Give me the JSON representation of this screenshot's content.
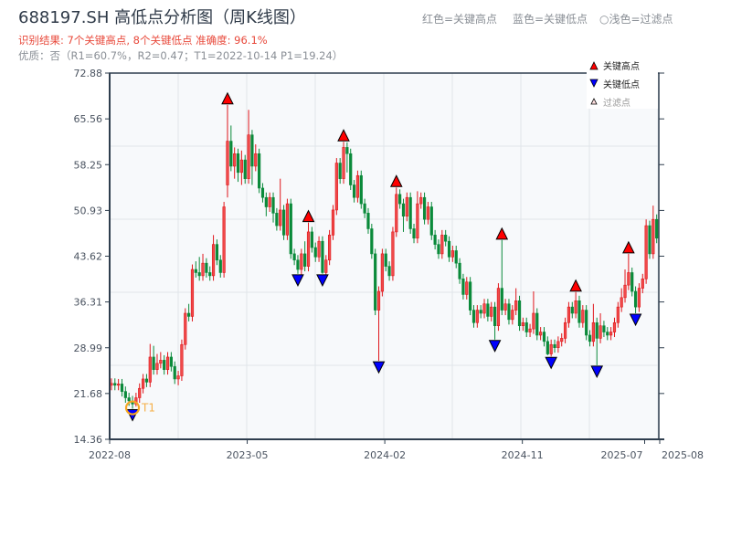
{
  "header": {
    "title": "688197.SH 高低点分析图（周K线图）",
    "result_line": "识别结果: 7个关键高点, 8个关键低点   准确度: 96.1%",
    "quality_line": "优质：否（R1=60.7%，R2=0.47；T1=2022-10-14 P1=19.24）",
    "top_legend": {
      "red": "红色=关键高点",
      "blue": "蓝色=关键低点",
      "filtered": "○浅色=过滤点"
    }
  },
  "chart_data": {
    "type": "candlestick",
    "title": "688197.SH 高低点分析图（周K线图）",
    "frequency": "weekly",
    "ylim": [
      14.36,
      72.88
    ],
    "y_ticks": [
      14.36,
      21.68,
      28.99,
      36.31,
      43.62,
      50.93,
      58.25,
      65.56,
      72.88
    ],
    "y_tick_labels": [
      "14.36",
      "21.68",
      "28.99",
      "36.31",
      "43.62",
      "50.93",
      "58.25",
      "65.56",
      "72.88"
    ],
    "x_tick_labels": [
      "2022-08",
      "2023-05",
      "2024-02",
      "2024-11",
      "2025-07",
      "2025-08"
    ],
    "grid": true,
    "colors": {
      "up": "#e0161b",
      "down": "#0a8a3a",
      "high_marker": "#ff0000",
      "low_marker": "#0000ff",
      "t1": "#f5a623",
      "plot_bg": "#f7f9fb",
      "axis": "#2f3e4e"
    },
    "open": [
      23.0,
      23.3,
      23.0,
      23.2,
      22.0,
      21.0,
      20.5,
      20.0,
      21.0,
      22.5,
      24.0,
      23.5,
      27.5,
      25.5,
      26.5,
      27.0,
      25.5,
      27.5,
      26.0,
      24.0,
      24.5,
      29.5,
      34.5,
      34.0,
      41.5,
      41.0,
      40.5,
      42.5,
      41.0,
      40.5,
      45.5,
      43.0,
      41.0,
      55.0,
      62.0,
      58.0,
      60.0,
      57.0,
      59.0,
      56.0,
      63.0,
      58.0,
      60.0,
      54.5,
      53.0,
      51.5,
      53.0,
      50.5,
      48.5,
      51.0,
      47.0,
      52.0,
      44.0,
      43.0,
      41.5,
      44.0,
      42.0,
      47.5,
      45.0,
      43.5,
      46.0,
      41.0,
      43.0,
      47.0,
      51.0,
      58.5,
      56.0,
      61.0,
      60.0,
      55.0,
      53.0,
      56.5,
      52.0,
      50.5,
      48.0,
      44.0,
      35.0,
      38.0,
      44.0,
      42.0,
      40.5,
      47.5,
      53.5,
      52.0,
      50.0,
      53.0,
      48.0,
      46.5,
      52.0,
      53.0,
      49.5,
      51.5,
      47.0,
      45.5,
      44.0,
      47.0,
      46.0,
      43.5,
      44.5,
      42.5,
      40.0,
      37.5,
      39.5,
      35.0,
      33.0,
      35.0,
      34.5,
      36.0,
      34.0,
      35.5,
      32.5,
      38.5,
      35.0,
      36.0,
      33.5,
      35.0,
      36.5,
      32.5,
      33.0,
      31.5,
      32.0,
      34.5,
      31.0,
      31.5,
      30.0,
      28.0,
      29.5,
      29.0,
      30.0,
      30.5,
      33.0,
      35.5,
      34.5,
      36.5,
      33.0,
      35.0,
      31.0,
      30.0,
      33.0,
      30.5,
      32.5,
      31.5,
      31.0,
      31.5,
      33.0,
      35.5,
      37.0,
      39.0,
      41.0,
      38.0,
      35.5,
      38.5,
      40.0,
      48.5,
      44.0,
      49.5
    ],
    "high": [
      24.1,
      24.1,
      24.0,
      24.0,
      22.8,
      21.8,
      21.3,
      21.8,
      23.3,
      24.8,
      24.8,
      29.6,
      29.3,
      28.0,
      28.3,
      27.8,
      28.3,
      28.3,
      26.8,
      25.3,
      30.3,
      35.3,
      36.0,
      42.3,
      42.8,
      43.5,
      44.0,
      43.3,
      42.0,
      47.0,
      46.3,
      43.8,
      52.3,
      67.8,
      64.5,
      61.0,
      60.8,
      60.5,
      59.8,
      67.0,
      63.8,
      61.5,
      60.8,
      55.3,
      53.8,
      53.8,
      53.8,
      51.3,
      56.0,
      51.8,
      52.8,
      52.8,
      44.8,
      43.8,
      44.8,
      46.0,
      49.0,
      48.3,
      45.8,
      46.8,
      46.8,
      43.8,
      47.8,
      51.8,
      59.3,
      59.3,
      61.9,
      61.8,
      60.8,
      55.8,
      57.3,
      57.3,
      52.8,
      51.3,
      48.8,
      44.8,
      38.8,
      44.8,
      44.8,
      42.8,
      48.3,
      54.6,
      54.3,
      52.8,
      53.8,
      53.8,
      48.8,
      54.0,
      53.8,
      53.8,
      52.3,
      52.3,
      47.8,
      46.3,
      47.8,
      47.8,
      46.8,
      45.3,
      45.3,
      43.3,
      40.8,
      40.3,
      40.3,
      35.8,
      35.8,
      35.8,
      36.8,
      36.8,
      36.3,
      36.3,
      39.3,
      46.2,
      36.8,
      36.8,
      35.8,
      38.5,
      37.3,
      33.8,
      33.8,
      32.8,
      38.0,
      35.3,
      32.3,
      32.3,
      30.8,
      30.3,
      30.3,
      30.8,
      31.3,
      33.8,
      36.3,
      36.3,
      37.9,
      37.3,
      35.8,
      35.8,
      31.8,
      36.0,
      33.8,
      34.5,
      33.3,
      32.3,
      32.3,
      33.8,
      36.3,
      38.5,
      41.5,
      44.0,
      41.8,
      38.8,
      39.3,
      40.8,
      49.5,
      49.3,
      51.7,
      50.3
    ],
    "low": [
      22.2,
      22.2,
      22.2,
      21.2,
      20.2,
      19.7,
      19.24,
      19.6,
      20.2,
      21.7,
      22.7,
      22.7,
      24.7,
      24.7,
      25.7,
      24.7,
      24.7,
      25.2,
      23.2,
      23.0,
      23.7,
      28.7,
      33.2,
      33.2,
      40.2,
      39.7,
      39.7,
      40.2,
      39.7,
      39.7,
      42.2,
      40.2,
      40.2,
      53.0,
      57.2,
      56.0,
      55.5,
      55.0,
      55.2,
      55.2,
      55.0,
      57.2,
      53.7,
      52.2,
      50.0,
      50.7,
      49.0,
      47.7,
      47.7,
      46.2,
      46.2,
      43.2,
      42.2,
      40.8,
      40.7,
      41.2,
      41.2,
      44.2,
      42.7,
      42.7,
      40.8,
      40.2,
      42.2,
      46.2,
      50.2,
      55.2,
      55.2,
      57.0,
      54.2,
      52.2,
      52.2,
      51.2,
      49.7,
      47.2,
      43.2,
      34.2,
      26.9,
      37.2,
      41.2,
      39.7,
      39.7,
      46.7,
      51.2,
      47.5,
      49.2,
      47.2,
      45.7,
      45.7,
      51.2,
      48.7,
      48.7,
      46.2,
      44.7,
      43.2,
      43.2,
      45.2,
      42.7,
      42.7,
      41.7,
      39.2,
      36.7,
      36.7,
      34.2,
      32.2,
      32.2,
      33.7,
      33.7,
      33.2,
      33.2,
      30.3,
      31.7,
      34.2,
      34.2,
      32.7,
      32.7,
      34.2,
      31.7,
      31.7,
      30.7,
      30.7,
      31.2,
      30.2,
      30.2,
      29.2,
      27.8,
      27.6,
      28.2,
      28.2,
      29.2,
      29.7,
      32.2,
      33.7,
      33.7,
      32.2,
      32.2,
      30.2,
      29.2,
      29.2,
      26.2,
      29.7,
      30.7,
      30.2,
      30.2,
      30.7,
      32.2,
      34.7,
      36.2,
      38.2,
      37.2,
      34.5,
      34.7,
      37.7,
      39.2,
      43.2,
      43.2,
      45.7
    ],
    "close": [
      23.3,
      23.0,
      23.2,
      22.0,
      21.0,
      20.5,
      20.0,
      21.0,
      22.5,
      24.0,
      23.5,
      27.5,
      25.5,
      26.5,
      27.0,
      25.5,
      27.5,
      26.0,
      24.0,
      24.5,
      29.5,
      34.5,
      34.0,
      41.5,
      41.0,
      40.5,
      42.5,
      41.0,
      40.5,
      45.5,
      43.0,
      41.0,
      51.5,
      62.0,
      58.0,
      60.0,
      57.0,
      59.0,
      56.0,
      63.0,
      58.0,
      60.0,
      54.5,
      53.0,
      51.5,
      53.0,
      50.5,
      48.5,
      51.0,
      47.0,
      52.0,
      44.0,
      43.0,
      41.5,
      44.0,
      42.0,
      47.5,
      45.0,
      43.5,
      46.0,
      41.0,
      43.0,
      47.0,
      51.0,
      58.5,
      56.0,
      61.0,
      60.0,
      55.0,
      53.0,
      56.5,
      52.0,
      50.5,
      48.0,
      44.0,
      35.0,
      38.0,
      44.0,
      42.0,
      40.5,
      47.5,
      53.5,
      52.0,
      50.0,
      53.0,
      48.0,
      46.5,
      52.0,
      53.0,
      49.5,
      51.5,
      47.0,
      45.5,
      44.0,
      47.0,
      46.0,
      43.5,
      44.5,
      42.5,
      40.0,
      37.5,
      39.5,
      35.0,
      33.0,
      35.0,
      34.5,
      36.0,
      34.0,
      35.5,
      32.5,
      38.5,
      35.0,
      36.0,
      33.5,
      35.0,
      36.5,
      32.5,
      33.0,
      31.5,
      32.0,
      34.5,
      31.0,
      31.5,
      30.0,
      28.0,
      29.5,
      29.0,
      30.0,
      30.5,
      33.0,
      35.5,
      34.5,
      36.5,
      33.0,
      35.0,
      31.0,
      30.0,
      33.0,
      30.5,
      32.5,
      31.5,
      31.0,
      31.5,
      33.0,
      35.5,
      37.0,
      39.0,
      41.0,
      38.0,
      35.5,
      38.5,
      40.0,
      48.5,
      44.0,
      49.5,
      46.5
    ],
    "key_highs": [
      {
        "week": 33,
        "price": 67.8
      },
      {
        "week": 56,
        "price": 49.0
      },
      {
        "week": 66,
        "price": 61.9
      },
      {
        "week": 81,
        "price": 54.6
      },
      {
        "week": 111,
        "price": 46.2
      },
      {
        "week": 132,
        "price": 37.9
      },
      {
        "week": 147,
        "price": 44.0
      }
    ],
    "key_lows": [
      {
        "week": 6,
        "price": 19.24
      },
      {
        "week": 53,
        "price": 40.8
      },
      {
        "week": 60,
        "price": 40.8
      },
      {
        "week": 76,
        "price": 26.9
      },
      {
        "week": 109,
        "price": 30.3
      },
      {
        "week": 125,
        "price": 27.6
      },
      {
        "week": 138,
        "price": 26.2
      },
      {
        "week": 149,
        "price": 34.5
      }
    ],
    "t1": {
      "label": "T1",
      "week": 6,
      "price": 19.24
    },
    "legend": {
      "placement": "top-right",
      "entries": [
        "关键高点",
        "关键低点",
        "过滤点"
      ]
    }
  }
}
